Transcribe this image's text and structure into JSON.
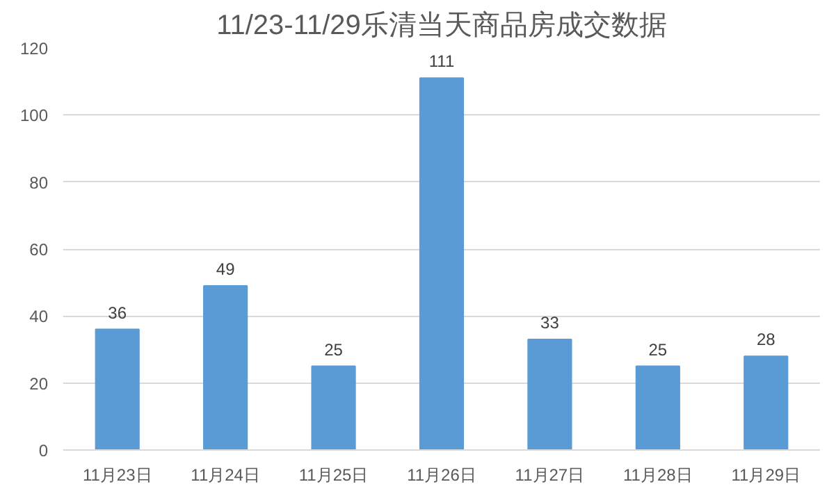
{
  "chart_data": {
    "type": "bar",
    "title": "11/23-11/29乐清当天商品房成交数据",
    "categories": [
      "11月23日",
      "11月24日",
      "11月25日",
      "11月26日",
      "11月27日",
      "11月28日",
      "11月29日"
    ],
    "values": [
      36,
      49,
      25,
      111,
      33,
      25,
      28
    ],
    "color": "#5b9bd5",
    "ylim": [
      0,
      120
    ],
    "yticks": [
      0,
      20,
      40,
      60,
      80,
      100,
      120
    ],
    "grid": "y",
    "data_labels": true
  }
}
